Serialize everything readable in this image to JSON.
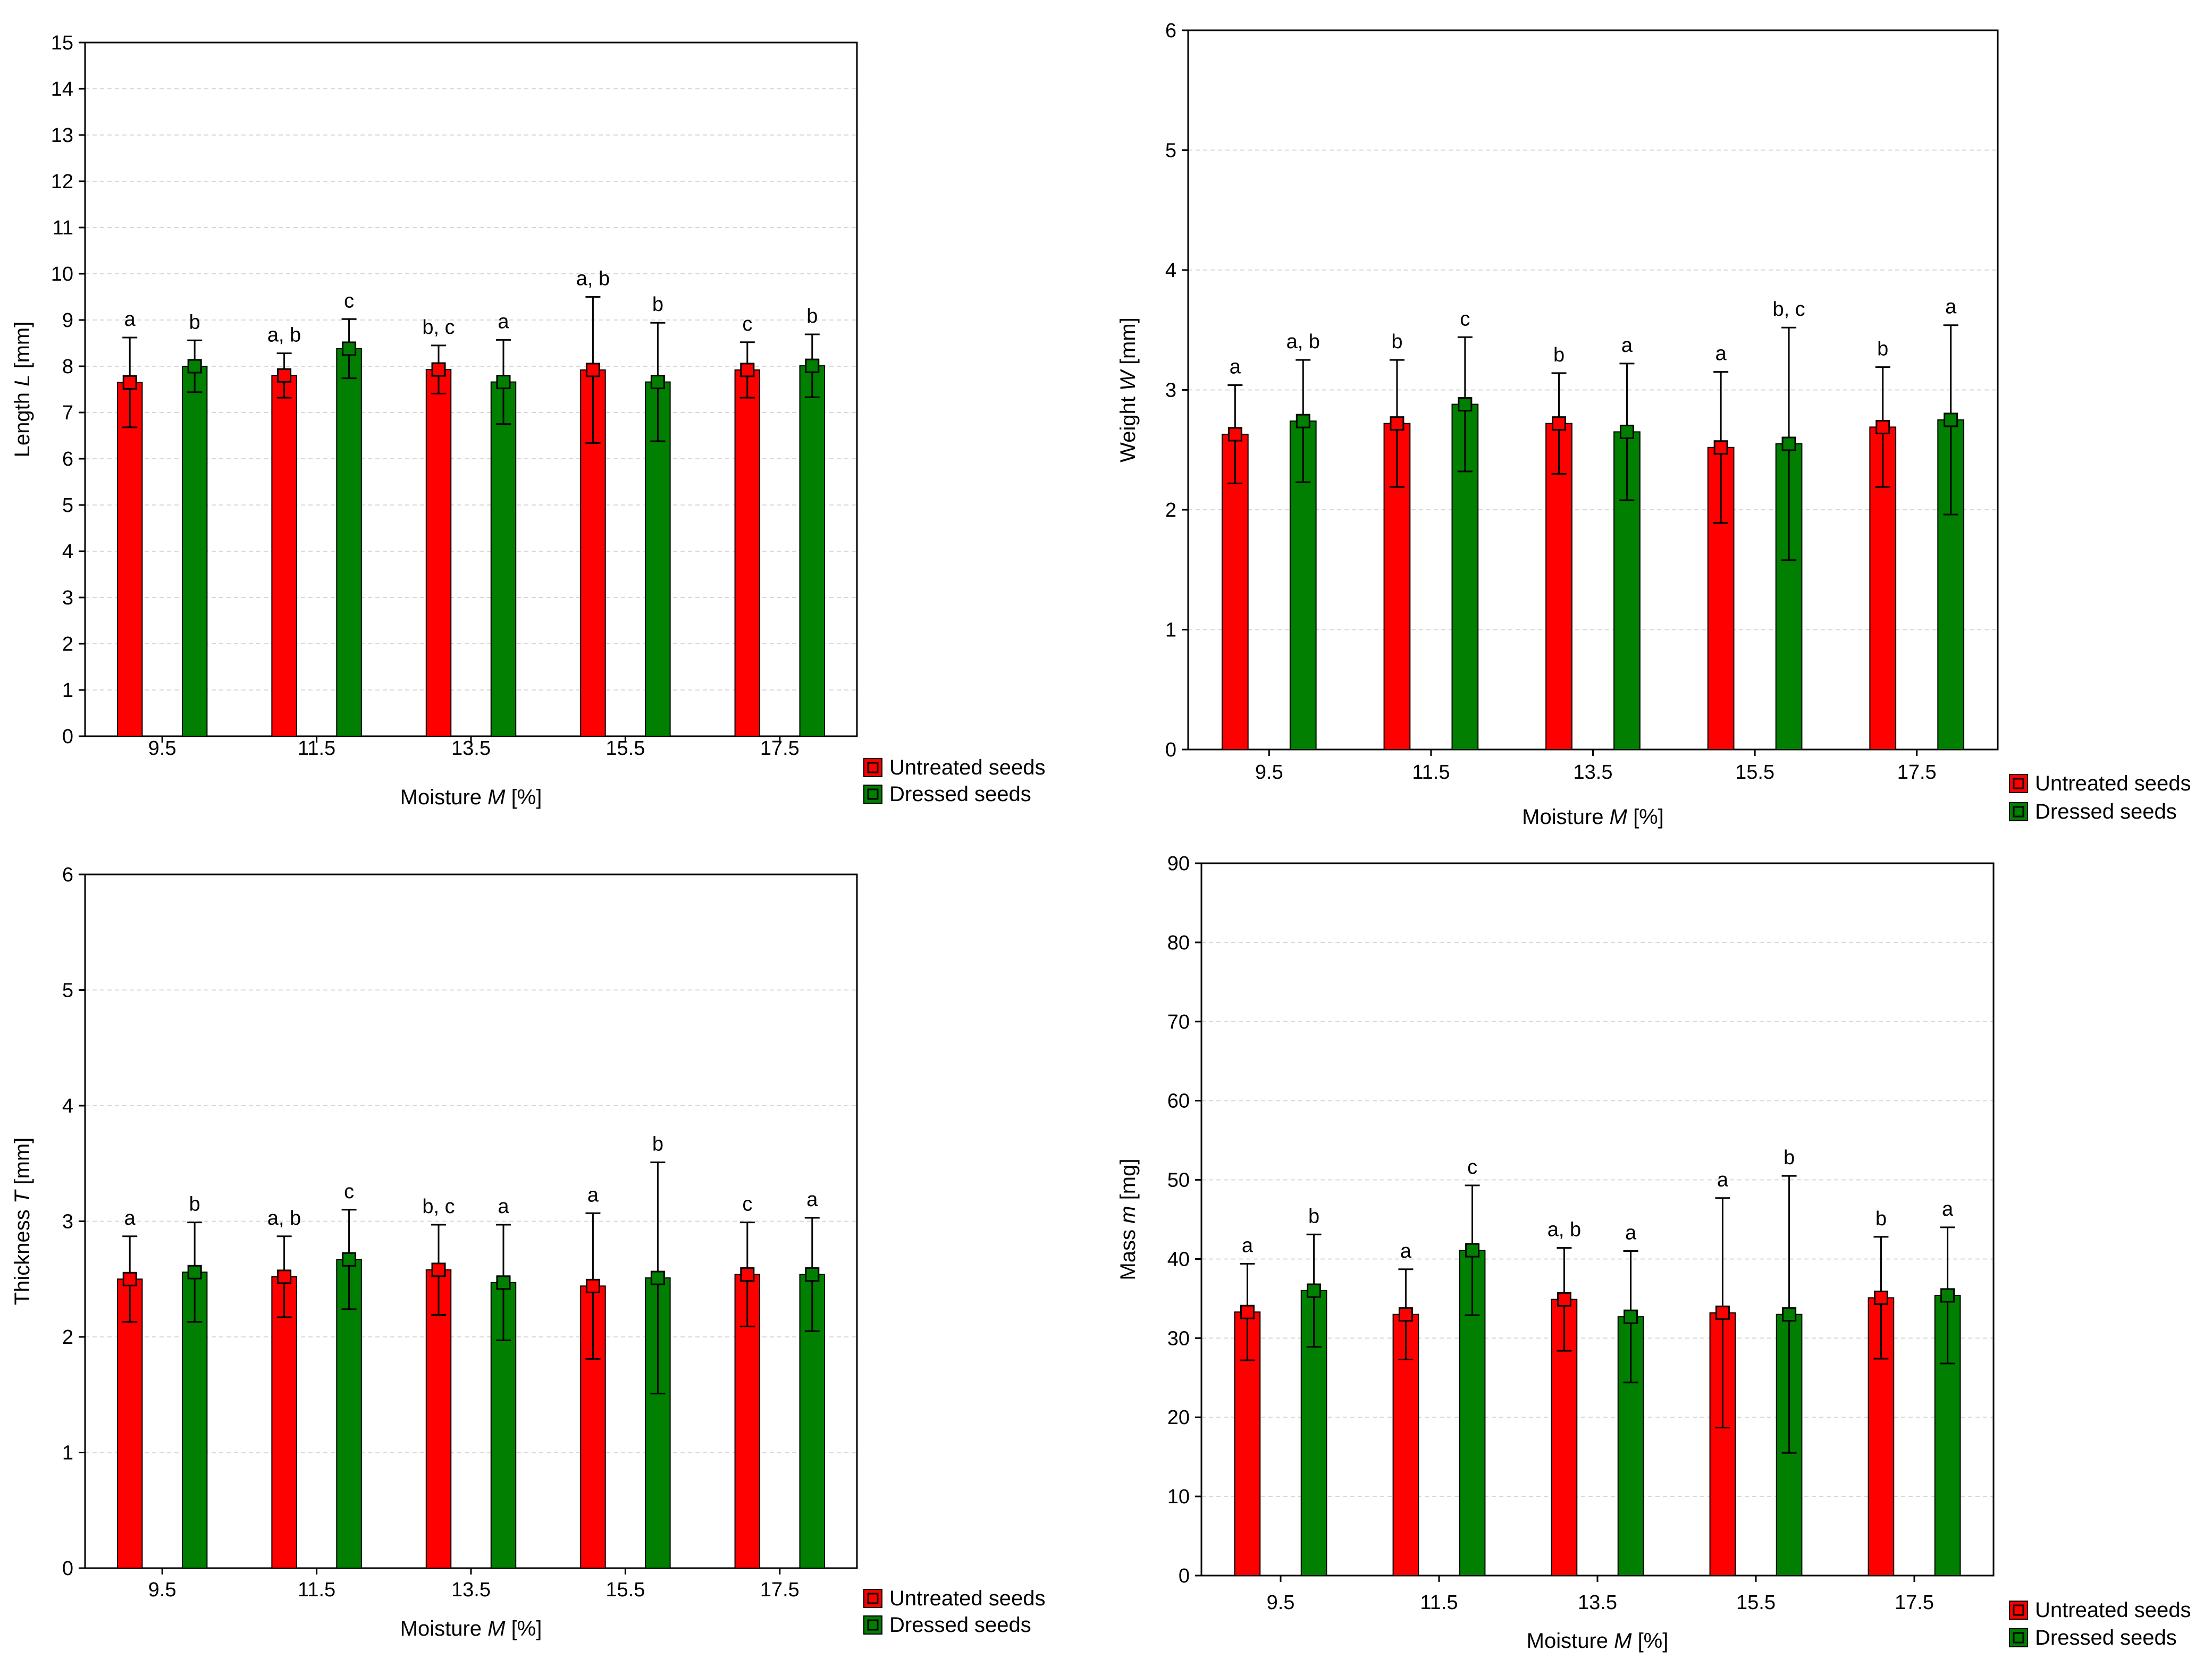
{
  "figure": {
    "legend": {
      "untreated_label": "Untreated seeds",
      "dressed_label": "Dressed seeds"
    }
  },
  "colors": {
    "untreated": "#ff0000",
    "dressed": "#007f00",
    "grid": "#d8d8d8",
    "axis": "#000000"
  },
  "chart_data": [
    {
      "id": "length",
      "type": "bar",
      "categories": [
        "9.5",
        "11.5",
        "13.5",
        "15.5",
        "17.5"
      ],
      "xlabel_prefix": "Moisture ",
      "xlabel_var": "M",
      "xlabel_suffix": " [%]",
      "ylabel_prefix": "Length ",
      "ylabel_var": "L",
      "ylabel_suffix": " [mm]",
      "ylim": [
        0,
        15
      ],
      "yticks": [
        "0",
        "1",
        "2",
        "3",
        "4",
        "5",
        "6",
        "7",
        "8",
        "9",
        "10",
        "11",
        "12",
        "13",
        "14",
        "15"
      ],
      "grid": true,
      "legend_position": "bottom-right",
      "series": [
        {
          "name": "Untreated seeds",
          "values": [
            7.65,
            7.8,
            7.93,
            7.92,
            7.92
          ],
          "errors": [
            0.97,
            0.48,
            0.52,
            1.58,
            0.6
          ],
          "letters": [
            "a",
            "a, b",
            "b, c",
            "a, b",
            "c"
          ]
        },
        {
          "name": "Dressed seeds",
          "values": [
            8.0,
            8.38,
            7.66,
            7.66,
            8.01
          ],
          "errors": [
            0.56,
            0.64,
            0.91,
            1.28,
            0.68
          ],
          "letters": [
            "b",
            "c",
            "a",
            "b",
            "b"
          ]
        }
      ]
    },
    {
      "id": "weight",
      "type": "bar",
      "categories": [
        "9.5",
        "11.5",
        "13.5",
        "15.5",
        "17.5"
      ],
      "xlabel_prefix": "Moisture ",
      "xlabel_var": "M",
      "xlabel_suffix": " [%]",
      "ylabel_prefix": "Weight ",
      "ylabel_var": "W",
      "ylabel_suffix": " [mm]",
      "ylim": [
        0,
        6
      ],
      "yticks": [
        "0",
        "1",
        "2",
        "3",
        "4",
        "5",
        "6"
      ],
      "grid": true,
      "legend_position": "bottom-right",
      "series": [
        {
          "name": "Untreated seeds",
          "values": [
            2.63,
            2.72,
            2.72,
            2.52,
            2.69
          ],
          "errors": [
            0.41,
            0.53,
            0.42,
            0.63,
            0.5
          ],
          "letters": [
            "a",
            "b",
            "b",
            "a",
            "b"
          ]
        },
        {
          "name": "Dressed seeds",
          "values": [
            2.74,
            2.88,
            2.65,
            2.55,
            2.75
          ],
          "errors": [
            0.51,
            0.56,
            0.57,
            0.97,
            0.79
          ],
          "letters": [
            "a, b",
            "c",
            "a",
            "b, c",
            "a"
          ]
        }
      ]
    },
    {
      "id": "thickness",
      "type": "bar",
      "categories": [
        "9.5",
        "11.5",
        "13.5",
        "15.5",
        "17.5"
      ],
      "xlabel_prefix": "Moisture ",
      "xlabel_var": "M",
      "xlabel_suffix": " [%]",
      "ylabel_prefix": "Thickness ",
      "ylabel_var": "T",
      "ylabel_suffix": " [mm]",
      "ylim": [
        0,
        6
      ],
      "yticks": [
        "0",
        "1",
        "2",
        "3",
        "4",
        "5",
        "6"
      ],
      "grid": true,
      "legend_position": "bottom-right",
      "series": [
        {
          "name": "Untreated seeds",
          "values": [
            2.5,
            2.52,
            2.58,
            2.44,
            2.54
          ],
          "errors": [
            0.37,
            0.35,
            0.39,
            0.63,
            0.45
          ],
          "letters": [
            "a",
            "a, b",
            "b, c",
            "a",
            "c"
          ]
        },
        {
          "name": "Dressed seeds",
          "values": [
            2.56,
            2.67,
            2.47,
            2.51,
            2.54
          ],
          "errors": [
            0.43,
            0.43,
            0.5,
            1.0,
            0.49
          ],
          "letters": [
            "b",
            "c",
            "a",
            "b",
            "a"
          ]
        }
      ]
    },
    {
      "id": "mass",
      "type": "bar",
      "categories": [
        "9.5",
        "11.5",
        "13.5",
        "15.5",
        "17.5"
      ],
      "xlabel_prefix": "Moisture ",
      "xlabel_var": "M",
      "xlabel_suffix": " [%]",
      "ylabel_prefix": "Mass ",
      "ylabel_var": "m",
      "ylabel_suffix": " [mg]",
      "ylim": [
        0,
        90
      ],
      "yticks": [
        "0",
        "10",
        "20",
        "30",
        "40",
        "50",
        "60",
        "70",
        "80",
        "90"
      ],
      "grid": true,
      "legend_position": "bottom-right",
      "series": [
        {
          "name": "Untreated seeds",
          "values": [
            33.3,
            33.0,
            34.9,
            33.2,
            35.1
          ],
          "errors": [
            6.1,
            5.7,
            6.5,
            14.5,
            7.7
          ],
          "letters": [
            "a",
            "a",
            "a, b",
            "a",
            "b"
          ]
        },
        {
          "name": "Dressed seeds",
          "values": [
            36.0,
            41.1,
            32.7,
            33.0,
            35.4
          ],
          "errors": [
            7.1,
            8.2,
            8.3,
            17.5,
            8.6
          ],
          "letters": [
            "b",
            "c",
            "a",
            "b",
            "a"
          ]
        }
      ]
    }
  ]
}
